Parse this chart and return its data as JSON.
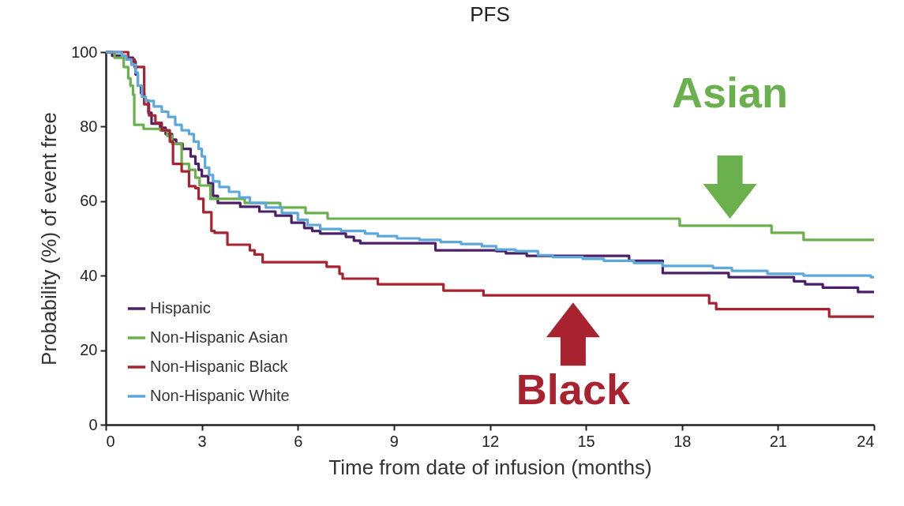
{
  "chart_data": {
    "type": "step",
    "title": "PFS",
    "xlabel": "Time from date of infusion (months)",
    "ylabel": "Probability (%) of event free",
    "xlim": [
      0,
      24
    ],
    "xticks": [
      0,
      3,
      6,
      9,
      12,
      15,
      18,
      21,
      24
    ],
    "ylim": [
      0,
      100
    ],
    "yticks": [
      0,
      20,
      40,
      60,
      80,
      100
    ],
    "legend": "bottom left",
    "series": [
      {
        "name": "Hispanic",
        "color": "#4b2068",
        "x": [
          0,
          0.2,
          0.7,
          0.85,
          0.93,
          1.0,
          1.1,
          1.2,
          1.33,
          1.43,
          1.7,
          1.87,
          2.07,
          2.2,
          2.4,
          2.65,
          2.8,
          2.9,
          3.0,
          3.2,
          3.35,
          3.5,
          4.2,
          4.8,
          5.3,
          5.8,
          6.2,
          6.45,
          6.7,
          7.5,
          7.75,
          7.95,
          10.3,
          12.2,
          12.5,
          13.15,
          16.35,
          17.4,
          19.46,
          21.5,
          21.85,
          22.4,
          23.5,
          24
        ],
        "values": [
          100,
          99,
          98.5,
          97.5,
          94,
          91,
          89,
          87,
          83.7,
          80.8,
          79.7,
          78,
          76.5,
          75.4,
          74,
          72,
          70,
          68.4,
          66.7,
          64.8,
          61.4,
          59.5,
          58.5,
          57.2,
          56.1,
          54.2,
          52.8,
          52,
          51.3,
          50.4,
          49.4,
          48.7,
          46.8,
          46.6,
          46,
          45.3,
          44,
          40.7,
          39.6,
          38.5,
          37.7,
          36.8,
          35.6,
          35.6
        ]
      },
      {
        "name": "Non-Hispanic Asian",
        "color": "#6ab04c",
        "x": [
          0,
          0.27,
          0.56,
          0.7,
          0.77,
          0.85,
          0.89,
          1.18,
          1.7,
          1.92,
          2.07,
          2.37,
          2.6,
          2.8,
          2.93,
          3.27,
          4.34,
          5.45,
          6.24,
          6.93,
          17.93,
          20.8,
          21.8,
          24
        ],
        "values": [
          100,
          98.5,
          96,
          93,
          91,
          88.6,
          80.5,
          79.4,
          79,
          77.5,
          75.4,
          70,
          68.4,
          66.3,
          64.2,
          60.6,
          59.5,
          58.3,
          56.8,
          55.3,
          53.4,
          51.5,
          49.6,
          49.6
        ]
      },
      {
        "name": "Non-Hispanic Black",
        "color": "#a8232f",
        "x": [
          0,
          0.7,
          0.9,
          1.2,
          1.35,
          1.55,
          1.75,
          2.0,
          2.1,
          2.37,
          2.6,
          2.8,
          2.9,
          3.05,
          3.3,
          3.4,
          3.8,
          4.5,
          4.65,
          4.9,
          6.9,
          7.3,
          7.4,
          8.5,
          10.55,
          11.8,
          18.85,
          19.07,
          22.6,
          24
        ],
        "values": [
          100,
          98,
          96,
          86,
          83,
          81,
          79,
          76,
          70,
          68,
          64,
          63.5,
          60.6,
          57,
          52,
          51.5,
          48.3,
          46.8,
          45.7,
          43.6,
          42.4,
          40.5,
          39.2,
          37.7,
          36,
          34.7,
          32.6,
          31,
          29,
          29
        ]
      },
      {
        "name": "Non-Hispanic White",
        "color": "#5ca8dd",
        "x": [
          0,
          0.5,
          0.64,
          0.8,
          0.93,
          1.0,
          1.13,
          1.25,
          1.5,
          1.75,
          1.95,
          2.17,
          2.37,
          2.6,
          2.75,
          2.9,
          3.0,
          3.1,
          3.23,
          3.35,
          3.55,
          3.85,
          4.17,
          4.5,
          5.0,
          5.5,
          6.0,
          6.3,
          6.7,
          7.35,
          8.1,
          8.5,
          9.1,
          9.8,
          10.46,
          11.1,
          11.75,
          12.2,
          12.8,
          13.5,
          13.96,
          14.9,
          15.56,
          16.5,
          17.4,
          18.97,
          19.56,
          20.67,
          21.8,
          23.9,
          24
        ],
        "values": [
          100,
          99,
          98,
          96.6,
          94.5,
          91,
          88,
          86.9,
          85.4,
          84,
          82.6,
          80.5,
          79,
          78,
          76,
          74,
          72,
          69,
          67,
          65.3,
          63.8,
          62.5,
          61,
          59.5,
          58.3,
          56.8,
          55,
          53.6,
          52.5,
          52,
          51.3,
          50.6,
          50,
          49.6,
          49,
          48.5,
          47.9,
          47,
          46.6,
          45.5,
          45,
          44.5,
          44,
          43.4,
          42.6,
          42.1,
          41.3,
          40.5,
          40,
          39.6,
          39.6
        ]
      }
    ],
    "annotations": [
      {
        "text": "Asian",
        "x": 19.5,
        "y": 53.4
      },
      {
        "text": "Black",
        "x": 14.6,
        "y": 34.7
      }
    ]
  }
}
